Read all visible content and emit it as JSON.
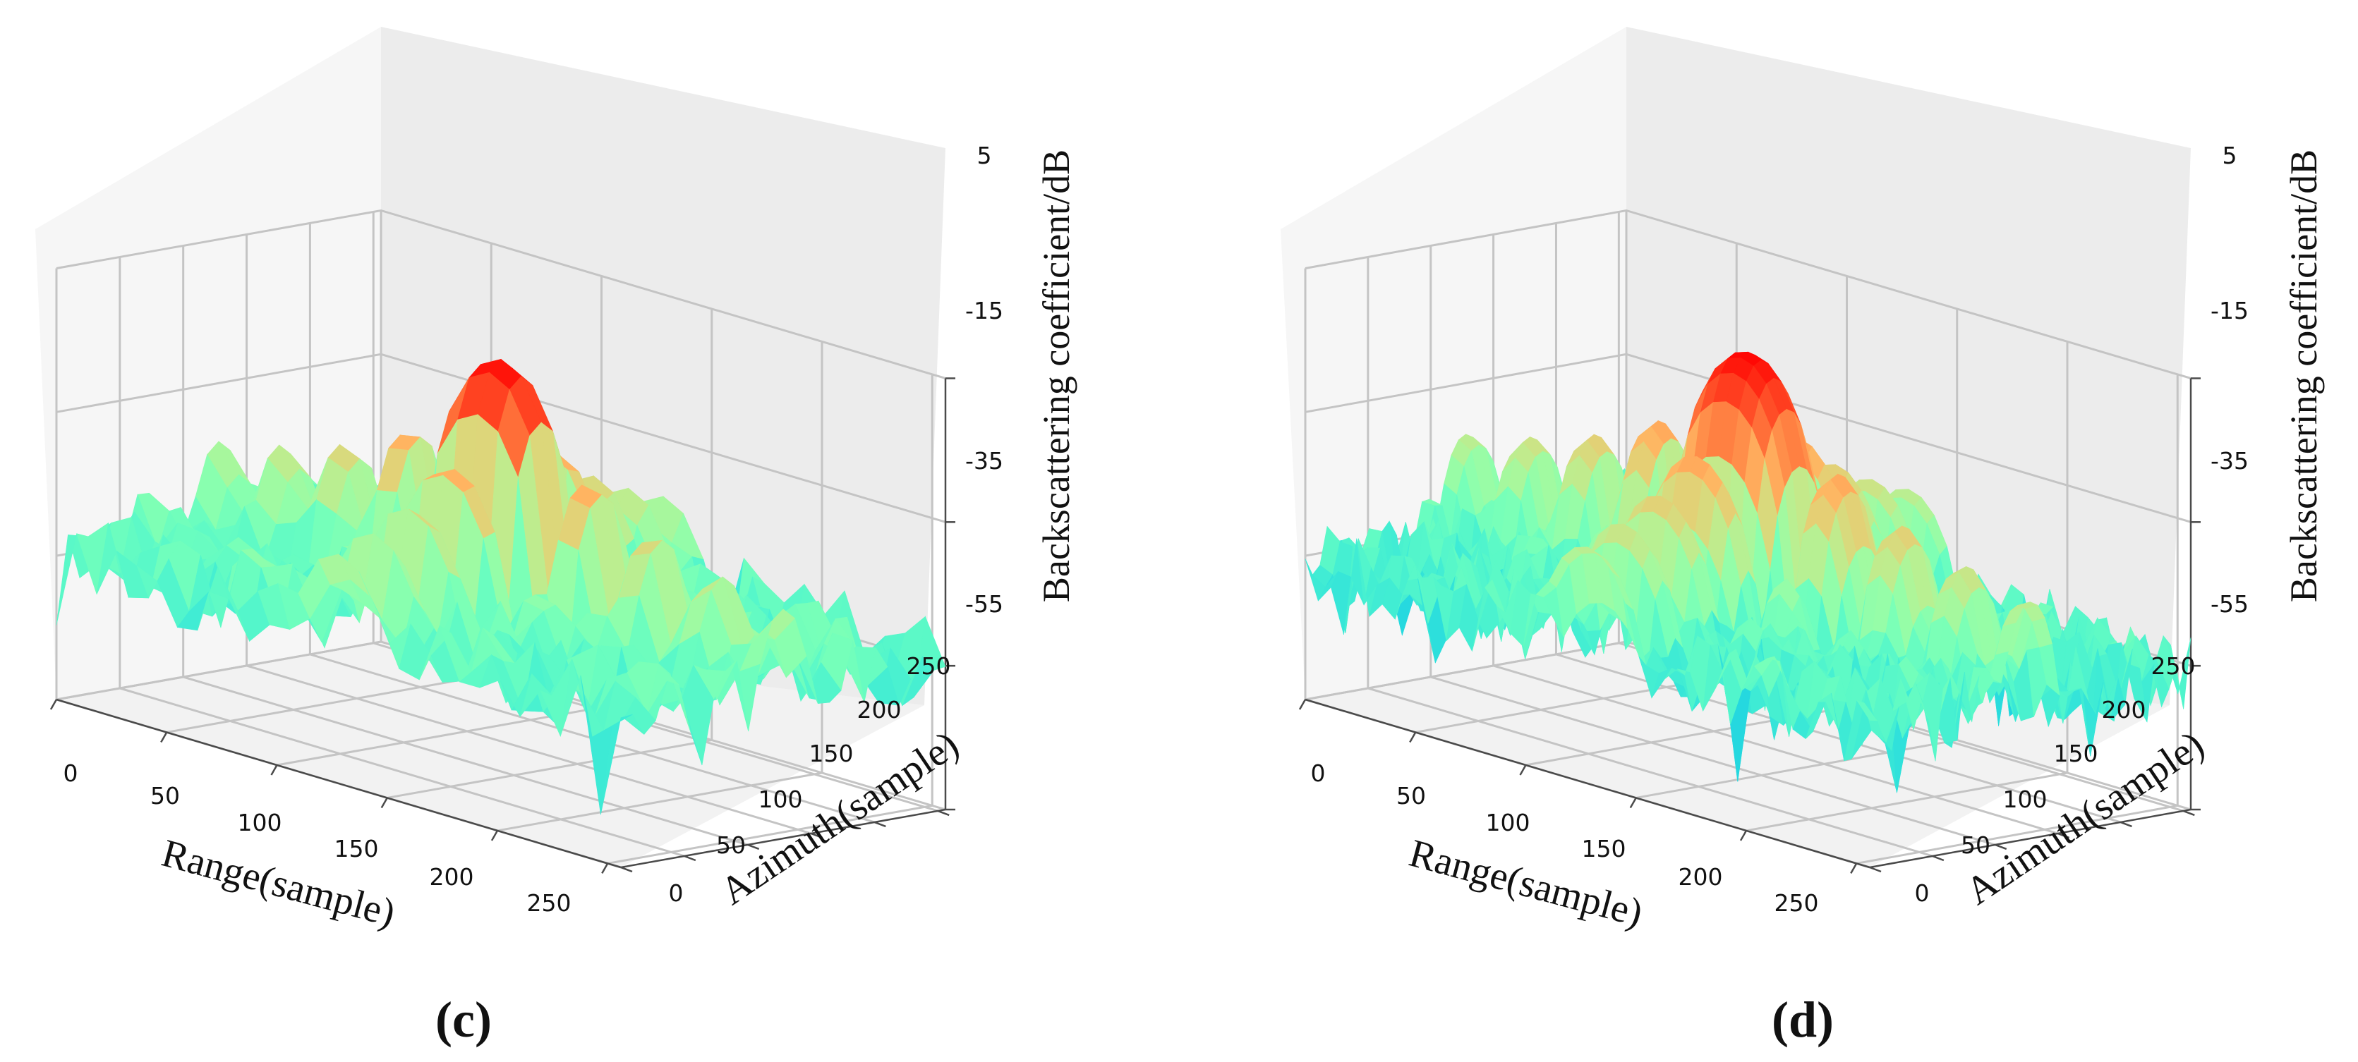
{
  "figure": {
    "colormap": "rainbow",
    "pane_colors": {
      "floor": "#f2f2f2",
      "left_wall": "#f5f5f5",
      "back_wall": "#ececec"
    }
  },
  "chart_data": [
    {
      "type": "surface3d",
      "panel": "(c)",
      "xlabel": "Range(sample)",
      "ylabel": "Azimuth(sample)",
      "zlabel": "Backscattering coefficient/dB",
      "xlim": [
        0,
        256
      ],
      "ylim": [
        0,
        256
      ],
      "zlim": [
        -55,
        5
      ],
      "xticks": [
        0,
        50,
        100,
        150,
        200,
        250
      ],
      "yticks": [
        0,
        50,
        100,
        150,
        200,
        250
      ],
      "zticks": [
        5,
        -15,
        -35,
        -55
      ],
      "peak": {
        "range": 128,
        "azimuth": 128,
        "value_db": 0
      },
      "sidelobe_level_db": -27,
      "background_clutter_db": {
        "mean": -34,
        "min": -50
      },
      "grid_points": 29
    },
    {
      "type": "surface3d",
      "panel": "(d)",
      "xlabel": "Range(sample)",
      "ylabel": "Azimuth(sample)",
      "zlabel": "Backscattering coefficient/dB",
      "xlim": [
        0,
        256
      ],
      "ylim": [
        0,
        256
      ],
      "zlim": [
        -55,
        5
      ],
      "xticks": [
        0,
        50,
        100,
        150,
        200,
        250
      ],
      "yticks": [
        0,
        50,
        100,
        150,
        200,
        250
      ],
      "zticks": [
        5,
        -15,
        -35,
        -55
      ],
      "peak": {
        "range": 128,
        "azimuth": 128,
        "value_db": 1
      },
      "sidelobe_level_db": -25,
      "background_clutter_db": {
        "mean": -36,
        "min": -50
      },
      "grid_points": 45
    }
  ]
}
